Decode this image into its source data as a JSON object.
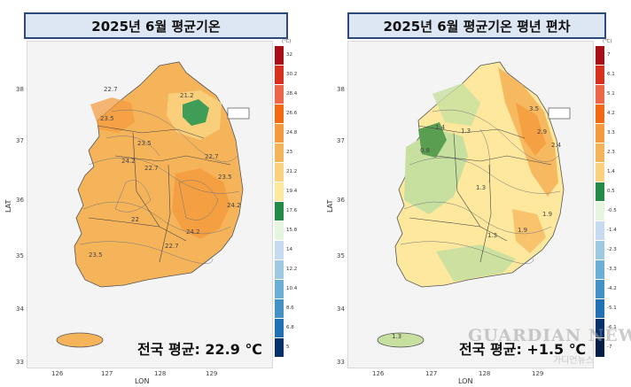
{
  "panels": [
    {
      "title": "2025년 6월 평균기온",
      "unit": "(℃)",
      "average_text": "전국 평균: 22.9 ℃",
      "lat_label": "LAT",
      "lon_label": "LON",
      "lat_ticks": [
        "38",
        "37",
        "36",
        "35",
        "34",
        "33"
      ],
      "lon_ticks": [
        "126",
        "127",
        "128",
        "129"
      ],
      "legend_labels": [
        "32",
        "30.2",
        "28.4",
        "26.6",
        "24.8",
        "23",
        "21.2",
        "19.4",
        "17.6",
        "15.8",
        "14",
        "12.2",
        "10.4",
        "8.6",
        "6.8",
        "5"
      ],
      "legend_colors": [
        "#a50f15",
        "#d7301f",
        "#ef6548",
        "#f16913",
        "#f49a3c",
        "#f6b45a",
        "#fad27e",
        "#fde89d",
        "#238b45",
        "#e5f5e0",
        "#c6dbef",
        "#9ecae1",
        "#6baed6",
        "#4292c6",
        "#2171b5",
        "#08306b"
      ],
      "contour_labels": [
        "22.7",
        "21.2",
        "23.5",
        "23.5",
        "24.2",
        "22.7",
        "23.5",
        "22",
        "24.2",
        "22.7",
        "24.2",
        "23.5",
        "22.7"
      ],
      "map_colors": {
        "base": "#f6b45a",
        "warm": "#f49a3c",
        "cool": "#fad27e",
        "cold": "#238b45"
      }
    },
    {
      "title": "2025년 6월 평균기온  평년 편차",
      "unit": "(℃)",
      "average_text": "전국 평균: +1.5 ℃",
      "lat_label": "LAT",
      "lon_label": "LON",
      "lat_ticks": [
        "38",
        "37",
        "36",
        "35",
        "34",
        "33"
      ],
      "lon_ticks": [
        "126",
        "127",
        "128",
        "129"
      ],
      "legend_labels": [
        "7",
        "6.1",
        "5.1",
        "4.2",
        "3.3",
        "2.3",
        "1.4",
        "0.5",
        "-0.5",
        "-1.4",
        "-2.3",
        "-3.3",
        "-4.2",
        "-5.1",
        "-6.1",
        "-7"
      ],
      "legend_colors": [
        "#a50f15",
        "#d7301f",
        "#ef6548",
        "#f16913",
        "#f49a3c",
        "#f6b45a",
        "#fad27e",
        "#238b45",
        "#e5f5e0",
        "#c6dbef",
        "#9ecae1",
        "#6baed6",
        "#4292c6",
        "#2171b5",
        "#08306b",
        "#041f45"
      ],
      "contour_labels": [
        "3.5",
        "2.9",
        "2.4",
        "1.3",
        "0.8",
        "1.3",
        "1.9",
        "1.3",
        "1.4",
        "1.9",
        "1.3"
      ],
      "map_colors": {
        "base": "#fde89d",
        "warm": "#f6b45a",
        "cool": "#c7e0a0",
        "cold": "#5a9e52"
      }
    }
  ],
  "watermark": {
    "main": "GUARDIAN NEWS",
    "sub": "가디언뉴스"
  }
}
